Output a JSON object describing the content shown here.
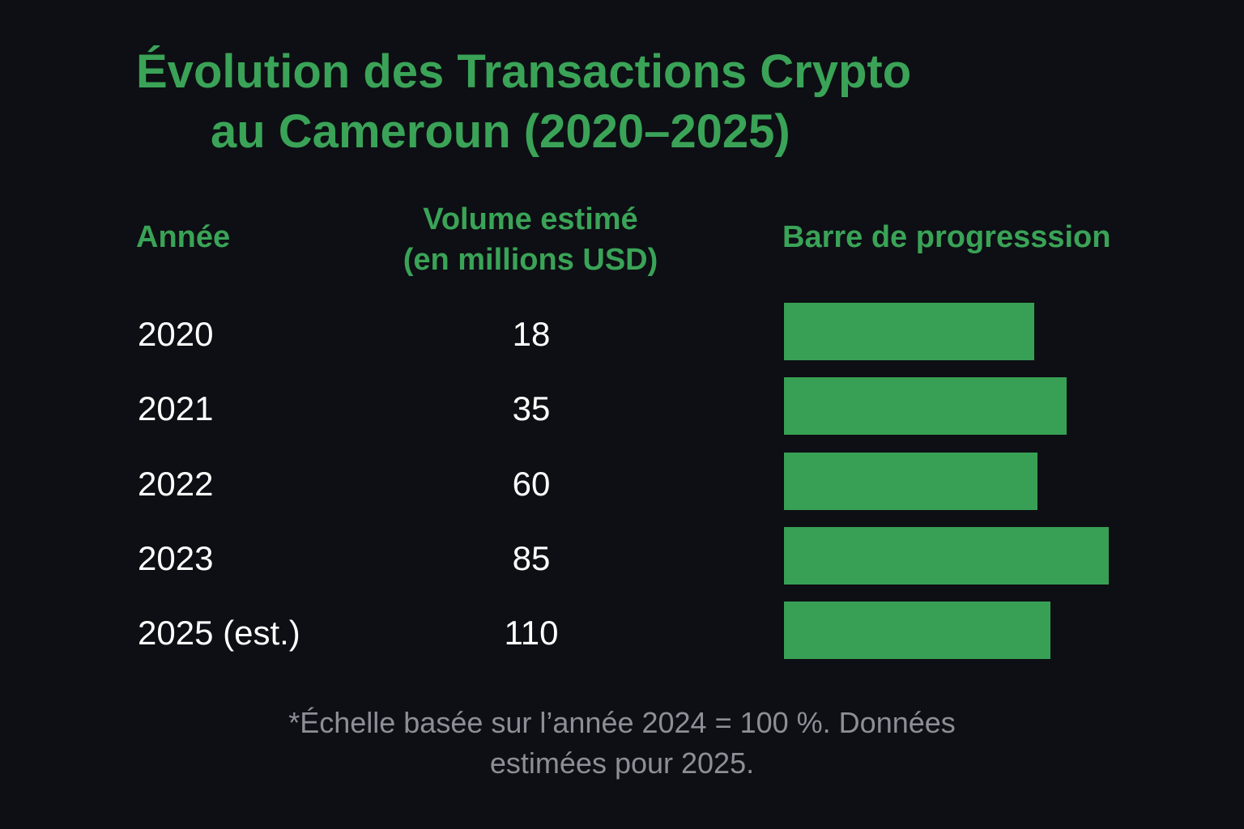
{
  "title": {
    "line1": "Évolution des Transactions Crypto",
    "line2": "au Cameroun (2020–2025)"
  },
  "headers": {
    "year": "Année",
    "volume_line1": "Volume estimé",
    "volume_line2": "(en millions USD)",
    "bar": "Barre de progresssion"
  },
  "rows": [
    {
      "year": "2020",
      "volume": "18"
    },
    {
      "year": "2021",
      "volume": "35"
    },
    {
      "year": "2022",
      "volume": "60"
    },
    {
      "year": "2023",
      "volume": "85"
    },
    {
      "year": "2025 (est.)",
      "volume": "110"
    }
  ],
  "footnote": {
    "line1": "*Échelle basée sur l’année 2024 = 100 %. Données",
    "line2": "estimées pour 2025."
  },
  "colors": {
    "background": "#0d0f14",
    "accent": "#3aa357",
    "bar": "#38a055",
    "footnote": "#8c8f96"
  },
  "chart_data": {
    "type": "table",
    "categories": [
      "2020",
      "2021",
      "2022",
      "2023",
      "2025 (est.)"
    ],
    "values": [
      18,
      35,
      60,
      85,
      110
    ],
    "bar_values_percent": [
      77,
      87,
      78,
      100,
      82
    ],
    "title": "Évolution des Transactions Crypto au Cameroun (2020–2025)",
    "ylabel": "Volume estimé (en millions USD)",
    "grid": false,
    "legend": "none"
  }
}
